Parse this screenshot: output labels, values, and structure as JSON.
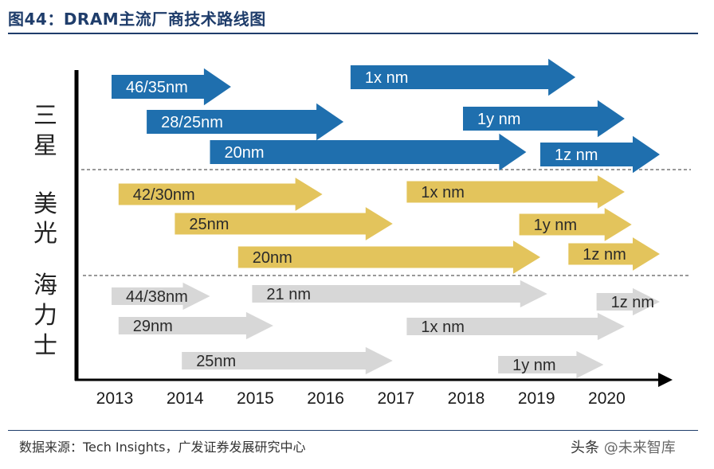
{
  "header": {
    "title": "图44：DRAM主流厂商技术路线图"
  },
  "footer": {
    "source": "数据来源：Tech Insights，广发证券发展研究中心",
    "watermark_prefix": "头条",
    "watermark_handle": "@未来智库"
  },
  "chart_data": {
    "type": "timeline",
    "title": "DRAM主流厂商技术路线图",
    "x_tick_labels": [
      "2013",
      "2014",
      "2015",
      "2016",
      "2017",
      "2018",
      "2019",
      "2020"
    ],
    "xlim": [
      2013,
      2020.8
    ],
    "companies": [
      {
        "name": "三星",
        "label_chars": [
          "三",
          "星"
        ],
        "color": "#1f6fae",
        "nodes": [
          {
            "label": "46/35nm",
            "start": 2013.0,
            "end": 2014.7
          },
          {
            "label": "28/25nm",
            "start": 2013.5,
            "end": 2016.3
          },
          {
            "label": "20nm",
            "start": 2014.4,
            "end": 2018.9
          },
          {
            "label": "1x nm",
            "start": 2016.4,
            "end": 2019.6
          },
          {
            "label": "1y nm",
            "start": 2018.0,
            "end": 2020.3
          },
          {
            "label": "1z nm",
            "start": 2019.1,
            "end": 2020.8
          }
        ]
      },
      {
        "name": "美光",
        "label_chars": [
          "美",
          "光"
        ],
        "color": "#e3c45c",
        "nodes": [
          {
            "label": "42/30nm",
            "start": 2013.1,
            "end": 2016.0
          },
          {
            "label": "25nm",
            "start": 2013.9,
            "end": 2017.0
          },
          {
            "label": "20nm",
            "start": 2014.8,
            "end": 2019.1
          },
          {
            "label": "1x nm",
            "start": 2017.2,
            "end": 2020.3
          },
          {
            "label": "1y nm",
            "start": 2018.8,
            "end": 2020.4
          },
          {
            "label": "1z nm",
            "start": 2019.5,
            "end": 2020.8
          }
        ]
      },
      {
        "name": "海力士",
        "label_chars": [
          "海",
          "力",
          "士"
        ],
        "color": "#d7d7d7",
        "nodes": [
          {
            "label": "44/38nm",
            "start": 2013.0,
            "end": 2014.4
          },
          {
            "label": "21 nm",
            "start": 2015.0,
            "end": 2019.2
          },
          {
            "label": "1z nm",
            "start": 2019.9,
            "end": 2020.8
          },
          {
            "label": "29nm",
            "start": 2013.1,
            "end": 2015.3
          },
          {
            "label": "1x nm",
            "start": 2017.2,
            "end": 2020.3
          },
          {
            "label": "25nm",
            "start": 2014.0,
            "end": 2017.0
          },
          {
            "label": "1y nm",
            "start": 2018.5,
            "end": 2020.0
          }
        ]
      }
    ]
  }
}
